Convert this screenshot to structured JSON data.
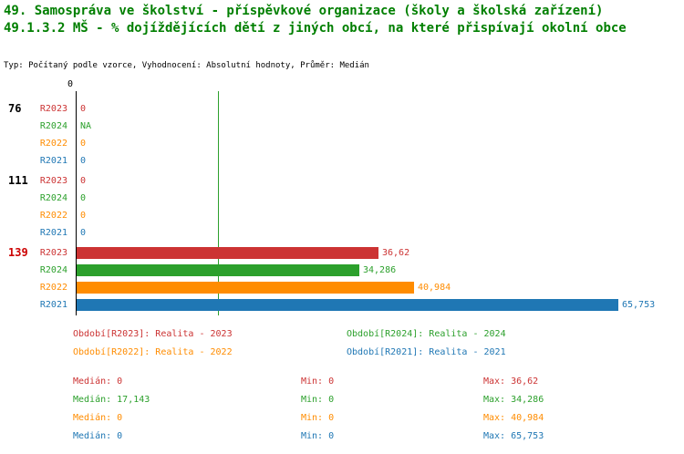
{
  "header": {
    "title_line1": "49. Samospráva ve školství - příspěvkové organizace (školy a školská zařízení)",
    "title_line2": "49.1.3.2 MŠ - % dojíždějících dětí z jiných obcí, na které přispívají okolní obce",
    "subtitle": "Typ: Počítaný podle vzorce, Vyhodnocení: Absolutní hodnoty, Průměr: Medián"
  },
  "colors": {
    "r2023": "#cc3333",
    "r2024": "#2ca02c",
    "r2022": "#ff8c00",
    "r2021": "#1f77b4",
    "title": "#007f00",
    "highlight": "#cc0000",
    "axis": "#000000"
  },
  "axis": {
    "zero_label": "0"
  },
  "median_line": {
    "value": 17.143,
    "series": "R2024"
  },
  "groups": [
    {
      "label": "76",
      "rows": [
        {
          "series": "R2023",
          "value": 0,
          "display": "0"
        },
        {
          "series": "R2024",
          "value": null,
          "display": "NA"
        },
        {
          "series": "R2022",
          "value": 0,
          "display": "0"
        },
        {
          "series": "R2021",
          "value": 0,
          "display": "0"
        }
      ]
    },
    {
      "label": "111",
      "rows": [
        {
          "series": "R2023",
          "value": 0,
          "display": "0"
        },
        {
          "series": "R2024",
          "value": 0,
          "display": "0"
        },
        {
          "series": "R2022",
          "value": 0,
          "display": "0"
        },
        {
          "series": "R2021",
          "value": 0,
          "display": "0"
        }
      ]
    },
    {
      "label": "139",
      "rows": [
        {
          "series": "R2023",
          "value": 36.62,
          "display": "36,62"
        },
        {
          "series": "R2024",
          "value": 34.286,
          "display": "34,286"
        },
        {
          "series": "R2022",
          "value": 40.984,
          "display": "40,984"
        },
        {
          "series": "R2021",
          "value": 65.753,
          "display": "65,753"
        }
      ]
    }
  ],
  "legend": [
    {
      "series": "R2023",
      "label": "Období[R2023]: Realita - 2023"
    },
    {
      "series": "R2024",
      "label": "Období[R2024]: Realita - 2024"
    },
    {
      "series": "R2022",
      "label": "Období[R2022]: Realita - 2022"
    },
    {
      "series": "R2021",
      "label": "Období[R2021]: Realita - 2021"
    }
  ],
  "stats": [
    {
      "series": "R2023",
      "median": "Medián: 0",
      "min": "Min: 0",
      "max": "Max: 36,62"
    },
    {
      "series": "R2024",
      "median": "Medián: 17,143",
      "min": "Min: 0",
      "max": "Max: 34,286"
    },
    {
      "series": "R2022",
      "median": "Medián: 0",
      "min": "Min: 0",
      "max": "Max: 40,984"
    },
    {
      "series": "R2021",
      "median": "Medián: 0",
      "min": "Min: 0",
      "max": "Max: 65,753"
    }
  ],
  "chart_data": {
    "type": "bar",
    "orientation": "horizontal",
    "title": "49. Samospráva ve školství - příspěvkové organizace (školy a školská zařízení)",
    "subtitle": "49.1.3.2 MŠ - % dojíždějících dětí z jiných obcí, na které přispívají okolní obce",
    "categories": [
      "76",
      "111",
      "139"
    ],
    "series": [
      {
        "name": "R2023",
        "legend": "Realita - 2023",
        "color": "#cc3333",
        "values": [
          0,
          0,
          36.62
        ],
        "median": 0,
        "min": 0,
        "max": 36.62
      },
      {
        "name": "R2024",
        "legend": "Realita - 2024",
        "color": "#2ca02c",
        "values": [
          null,
          0,
          34.286
        ],
        "median": 17.143,
        "min": 0,
        "max": 34.286
      },
      {
        "name": "R2022",
        "legend": "Realita - 2022",
        "color": "#ff8c00",
        "values": [
          0,
          0,
          40.984
        ],
        "median": 0,
        "min": 0,
        "max": 40.984
      },
      {
        "name": "R2021",
        "legend": "Realita - 2021",
        "color": "#1f77b4",
        "values": [
          0,
          0,
          65.753
        ],
        "median": 0,
        "min": 0,
        "max": 65.753
      }
    ],
    "x_axis": {
      "zero_tick": 0,
      "approx_max": 70
    },
    "median_reference_line": {
      "series": "R2024",
      "value": 17.143
    },
    "legend_position": "bottom",
    "grid": false
  }
}
